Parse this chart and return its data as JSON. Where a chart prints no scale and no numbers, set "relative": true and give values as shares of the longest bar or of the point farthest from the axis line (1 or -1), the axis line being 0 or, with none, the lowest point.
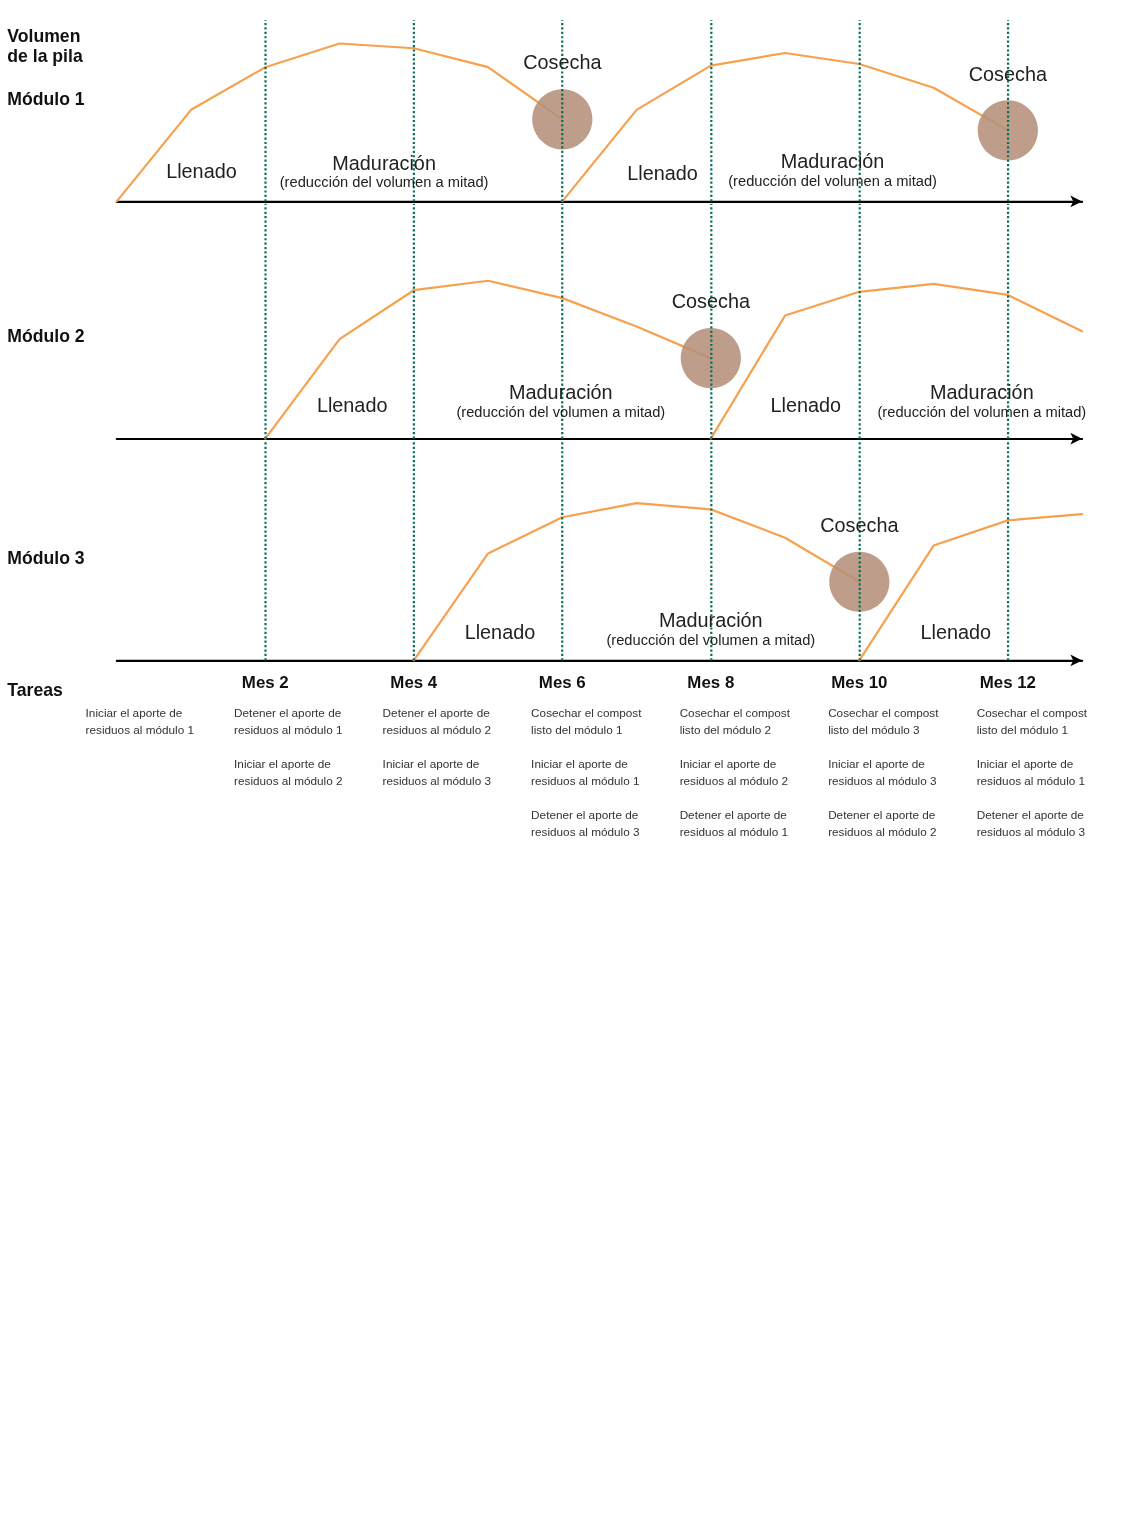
{
  "chart_data": [
    {
      "type": "line",
      "title": "Volumen de la pila",
      "ylabel": "Módulo 1",
      "relative": true,
      "tick_labels": false,
      "line_style": "solid",
      "categories": [
        null,
        null,
        "Mes 2",
        null,
        "Mes 4",
        null,
        "Mes 6",
        null,
        "Mes 8",
        null,
        "Mes 10",
        null,
        "Mes 12",
        null
      ],
      "series": [
        {
          "color": "#f7a04d",
          "values": [
            0,
            0.58,
            0.85,
            1,
            0.97,
            0.85,
            0.52,
            null,
            null,
            null,
            null,
            null,
            null,
            null
          ]
        },
        {
          "color": "#f7a04d",
          "values": [
            null,
            null,
            null,
            null,
            null,
            null,
            0,
            0.58,
            0.86,
            0.94,
            0.87,
            0.72,
            0.45,
            null
          ]
        },
        {
          "type": "scatter",
          "color": "#b5917a",
          "values": [
            null,
            null,
            null,
            null,
            null,
            null,
            0.52,
            null,
            null,
            null,
            null,
            null,
            0.45,
            null
          ]
        }
      ],
      "ref_lines": [
        {
          "axis": "x",
          "value": "Mes 2",
          "color": "#0b6e5e",
          "line_style": "dotted"
        },
        {
          "axis": "x",
          "value": "Mes 4",
          "color": "#0b6e5e",
          "line_style": "dotted"
        },
        {
          "axis": "x",
          "value": "Mes 6",
          "color": "#0b6e5e",
          "line_style": "dotted"
        },
        {
          "axis": "x",
          "value": "Mes 8",
          "color": "#0b6e5e",
          "line_style": "dotted"
        },
        {
          "axis": "x",
          "value": "Mes 10",
          "color": "#0b6e5e",
          "line_style": "dotted"
        },
        {
          "axis": "x",
          "value": "Mes 12",
          "color": "#0b6e5e",
          "line_style": "dotted"
        }
      ],
      "annotations": [
        "Llenado",
        "Maduración\n(reducción del volumen a mitad)",
        {
          "text": "Cosecha",
          "x": "Mes 6",
          "y": 0.52
        },
        "Llenado",
        "Maduración\n(reducción del volumen a mitad)",
        {
          "text": "Cosecha",
          "x": "Mes 12",
          "y": 0.45
        }
      ]
    },
    {
      "type": "line",
      "ylabel": "Módulo 2",
      "relative": true,
      "tick_labels": false,
      "line_style": "solid",
      "categories": [
        null,
        null,
        "Mes 2",
        null,
        "Mes 4",
        null,
        "Mes 6",
        null,
        "Mes 8",
        null,
        "Mes 10",
        null,
        "Mes 12",
        null
      ],
      "series": [
        {
          "color": "#f7a04d",
          "values": [
            null,
            null,
            0,
            0.63,
            0.94,
            1,
            0.89,
            0.71,
            0.51,
            null,
            null,
            null,
            null,
            null
          ]
        },
        {
          "color": "#f7a04d",
          "values": [
            null,
            null,
            null,
            null,
            null,
            null,
            null,
            null,
            0,
            0.78,
            0.93,
            0.98,
            0.91,
            0.68
          ]
        },
        {
          "type": "scatter",
          "color": "#b5917a",
          "values": [
            null,
            null,
            null,
            null,
            null,
            null,
            null,
            null,
            0.51,
            null,
            null,
            null,
            null,
            null
          ]
        }
      ],
      "ref_lines": [
        {
          "axis": "x",
          "value": "Mes 2",
          "color": "#0b6e5e",
          "line_style": "dotted"
        },
        {
          "axis": "x",
          "value": "Mes 4",
          "color": "#0b6e5e",
          "line_style": "dotted"
        },
        {
          "axis": "x",
          "value": "Mes 6",
          "color": "#0b6e5e",
          "line_style": "dotted"
        },
        {
          "axis": "x",
          "value": "Mes 8",
          "color": "#0b6e5e",
          "line_style": "dotted"
        },
        {
          "axis": "x",
          "value": "Mes 10",
          "color": "#0b6e5e",
          "line_style": "dotted"
        },
        {
          "axis": "x",
          "value": "Mes 12",
          "color": "#0b6e5e",
          "line_style": "dotted"
        }
      ],
      "annotations": [
        "Llenado",
        "Maduración\n(reducción del volumen a mitad)",
        {
          "text": "Cosecha",
          "x": "Mes 8",
          "y": 0.51
        },
        "Llenado",
        "Maduración\n(reducción del volumen a mitad)"
      ]
    },
    {
      "type": "line",
      "ylabel": "Módulo 3",
      "relative": true,
      "tick_labels": "x",
      "line_style": "solid",
      "categories": [
        null,
        null,
        "Mes 2",
        null,
        "Mes 4",
        null,
        "Mes 6",
        null,
        "Mes 8",
        null,
        "Mes 10",
        null,
        "Mes 12",
        null
      ],
      "series": [
        {
          "color": "#f7a04d",
          "values": [
            null,
            null,
            null,
            null,
            0,
            0.68,
            0.91,
            1,
            0.96,
            0.78,
            0.5,
            null,
            null,
            null
          ]
        },
        {
          "color": "#f7a04d",
          "values": [
            null,
            null,
            null,
            null,
            null,
            null,
            null,
            null,
            null,
            null,
            0,
            0.73,
            0.89,
            0.93
          ]
        },
        {
          "type": "scatter",
          "color": "#b5917a",
          "values": [
            null,
            null,
            null,
            null,
            null,
            null,
            null,
            null,
            null,
            null,
            0.5,
            null,
            null,
            null
          ]
        }
      ],
      "ref_lines": [
        {
          "axis": "x",
          "value": "Mes 2",
          "color": "#0b6e5e",
          "line_style": "dotted"
        },
        {
          "axis": "x",
          "value": "Mes 4",
          "color": "#0b6e5e",
          "line_style": "dotted"
        },
        {
          "axis": "x",
          "value": "Mes 6",
          "color": "#0b6e5e",
          "line_style": "dotted"
        },
        {
          "axis": "x",
          "value": "Mes 8",
          "color": "#0b6e5e",
          "line_style": "dotted"
        },
        {
          "axis": "x",
          "value": "Mes 10",
          "color": "#0b6e5e",
          "line_style": "dotted"
        },
        {
          "axis": "x",
          "value": "Mes 12",
          "color": "#0b6e5e",
          "line_style": "dotted"
        }
      ],
      "annotations": [
        "Llenado",
        "Maduración\n(reducción del volumen a mitad)",
        {
          "text": "Cosecha",
          "x": "Mes 10",
          "y": 0.5
        },
        "Llenado"
      ]
    },
    {
      "type": "other",
      "title": "Tareas",
      "annotations": [
        "Iniciar el aporte de\nresiduos al módulo 1",
        "Detener el aporte de\nresiduos al módulo 1\n\nIniciar el aporte de\nresiduos al módulo 2",
        "Detener el aporte de\nresiduos al módulo 2\n\nIniciar el aporte de\nresiduos al módulo 3",
        "Cosechar el compost\nlisto del módulo 1\n\nIniciar el aporte de\nresiduos al módulo 1\n\nDetener el aporte de\nresiduos al módulo 3",
        "Cosechar el compost\nlisto del módulo 2\n\nIniciar el aporte de\nresiduos al módulo 2\n\nDetener el aporte de\nresiduos al módulo 1",
        "Cosechar el compost\nlisto del módulo 3\n\nIniciar el aporte de\nresiduos al módulo 3\n\nDetener el aporte de\nresiduos al módulo 2",
        "Cosechar el compost\nlisto del módulo 1\n\nIniciar el aporte de\nresiduos al módulo 1\n\nDetener el aporte de\nresiduos al módulo 3"
      ]
    }
  ]
}
